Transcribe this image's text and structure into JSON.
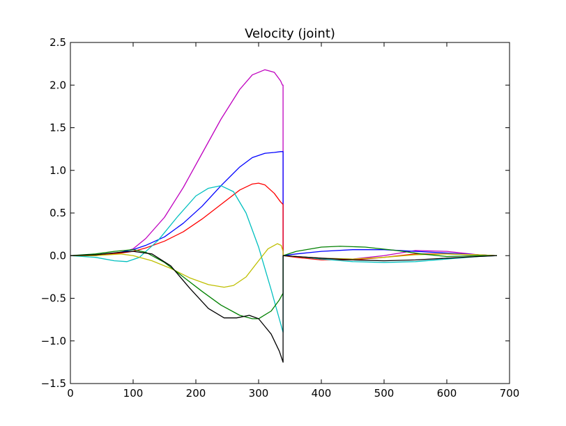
{
  "chart_data": {
    "type": "line",
    "title": "Velocity (joint)",
    "xlabel": "",
    "ylabel": "",
    "xlim": [
      0,
      700
    ],
    "ylim": [
      -1.5,
      2.5
    ],
    "xticks": [
      0,
      100,
      200,
      300,
      400,
      500,
      600,
      700
    ],
    "yticks": [
      -1.5,
      -1.0,
      -0.5,
      0.0,
      0.5,
      1.0,
      1.5,
      2.0,
      2.5
    ],
    "xtick_labels": [
      "0",
      "100",
      "200",
      "300",
      "400",
      "500",
      "600",
      "700"
    ],
    "ytick_labels": [
      "−1.5",
      "−1.0",
      "−0.5",
      "0.0",
      "0.5",
      "1.0",
      "1.5",
      "2.0",
      "2.5"
    ],
    "grid": false,
    "legend": "none",
    "series": [
      {
        "color": "#bf00bf",
        "x": [
          0,
          40,
          80,
          100,
          120,
          150,
          180,
          210,
          240,
          270,
          290,
          310,
          325,
          335,
          338,
          339,
          339,
          360,
          400,
          450,
          500,
          550,
          600,
          650,
          680
        ],
        "y": [
          0,
          0.0,
          0.03,
          0.08,
          0.2,
          0.45,
          0.8,
          1.2,
          1.6,
          1.95,
          2.12,
          2.18,
          2.15,
          2.05,
          2.0,
          2.0,
          0.0,
          -0.01,
          -0.03,
          -0.04,
          0.0,
          0.06,
          0.05,
          0.01,
          0
        ]
      },
      {
        "color": "#0000ff",
        "x": [
          0,
          40,
          80,
          100,
          120,
          150,
          180,
          210,
          240,
          270,
          290,
          310,
          325,
          335,
          338,
          339,
          339,
          360,
          400,
          450,
          500,
          550,
          600,
          650,
          680
        ],
        "y": [
          0,
          0.0,
          0.04,
          0.07,
          0.12,
          0.22,
          0.38,
          0.58,
          0.82,
          1.04,
          1.15,
          1.2,
          1.21,
          1.22,
          1.22,
          1.22,
          0.0,
          0.02,
          0.05,
          0.07,
          0.07,
          0.05,
          0.03,
          0.01,
          0
        ]
      },
      {
        "color": "#ff0000",
        "x": [
          0,
          40,
          80,
          100,
          120,
          150,
          180,
          210,
          240,
          270,
          290,
          300,
          310,
          325,
          335,
          339,
          339,
          360,
          400,
          450,
          500,
          550,
          600,
          650,
          680
        ],
        "y": [
          0,
          0.0,
          0.03,
          0.05,
          0.09,
          0.17,
          0.28,
          0.43,
          0.6,
          0.77,
          0.84,
          0.85,
          0.83,
          0.73,
          0.63,
          0.6,
          0.0,
          -0.02,
          -0.05,
          -0.05,
          -0.02,
          0.02,
          0.02,
          0.01,
          0
        ]
      },
      {
        "color": "#00bfbf",
        "x": [
          0,
          40,
          70,
          90,
          110,
          140,
          170,
          200,
          220,
          240,
          260,
          280,
          300,
          320,
          339,
          339,
          360,
          400,
          450,
          500,
          550,
          600,
          650,
          680
        ],
        "y": [
          0,
          -0.02,
          -0.06,
          -0.07,
          -0.02,
          0.18,
          0.45,
          0.7,
          0.79,
          0.82,
          0.75,
          0.5,
          0.1,
          -0.4,
          -0.9,
          0.0,
          -0.01,
          -0.04,
          -0.07,
          -0.08,
          -0.07,
          -0.04,
          -0.01,
          0
        ]
      },
      {
        "color": "#bfbf00",
        "x": [
          0,
          40,
          80,
          100,
          130,
          160,
          190,
          220,
          245,
          260,
          280,
          300,
          315,
          330,
          336,
          339,
          339,
          360,
          400,
          450,
          500,
          550,
          600,
          650,
          680
        ],
        "y": [
          0,
          0.0,
          0.02,
          0.0,
          -0.06,
          -0.15,
          -0.26,
          -0.34,
          -0.37,
          -0.35,
          -0.25,
          -0.06,
          0.08,
          0.14,
          0.12,
          0.05,
          0.0,
          -0.01,
          -0.03,
          -0.04,
          -0.02,
          0.01,
          0.02,
          0.01,
          0
        ]
      },
      {
        "color": "#008000",
        "x": [
          0,
          40,
          70,
          100,
          120,
          150,
          180,
          210,
          240,
          270,
          290,
          300,
          320,
          333,
          339,
          339,
          360,
          400,
          430,
          470,
          520,
          560,
          600,
          650,
          680
        ],
        "y": [
          0,
          0.02,
          0.05,
          0.07,
          0.04,
          -0.08,
          -0.25,
          -0.42,
          -0.58,
          -0.7,
          -0.74,
          -0.74,
          -0.65,
          -0.52,
          -0.44,
          0.0,
          0.05,
          0.1,
          0.11,
          0.1,
          0.06,
          0.02,
          -0.01,
          0.0,
          0
        ]
      },
      {
        "color": "#000000",
        "x": [
          0,
          40,
          80,
          100,
          130,
          160,
          190,
          220,
          245,
          265,
          285,
          300,
          320,
          333,
          339,
          339,
          360,
          400,
          450,
          500,
          550,
          600,
          650,
          680
        ],
        "y": [
          0,
          0.01,
          0.04,
          0.05,
          0.02,
          -0.12,
          -0.38,
          -0.62,
          -0.73,
          -0.73,
          -0.7,
          -0.74,
          -0.92,
          -1.12,
          -1.25,
          0.0,
          -0.01,
          -0.03,
          -0.05,
          -0.06,
          -0.05,
          -0.03,
          -0.01,
          0
        ]
      }
    ]
  }
}
